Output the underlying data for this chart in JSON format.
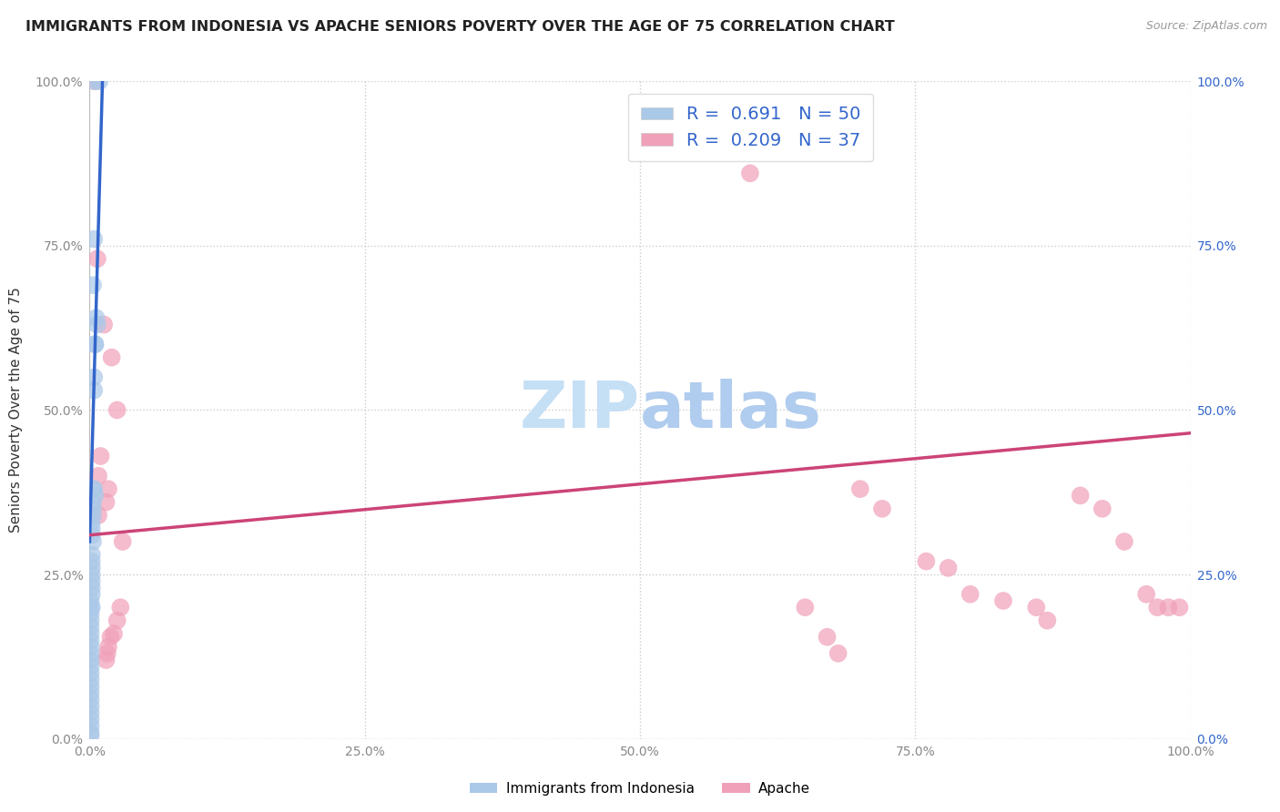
{
  "title": "IMMIGRANTS FROM INDONESIA VS APACHE SENIORS POVERTY OVER THE AGE OF 75 CORRELATION CHART",
  "source": "Source: ZipAtlas.com",
  "ylabel": "Seniors Poverty Over the Age of 75",
  "xlim": [
    0,
    1.0
  ],
  "ylim": [
    0,
    1.0
  ],
  "xticks": [
    0.0,
    0.25,
    0.5,
    0.75,
    1.0
  ],
  "yticks": [
    0.0,
    0.25,
    0.5,
    0.75,
    1.0
  ],
  "xticklabels_left": [
    "0.0%",
    "25.0%",
    "50.0%",
    "75.0%",
    "100.0%"
  ],
  "yticklabels_left": [
    "0.0%",
    "25.0%",
    "50.0%",
    "75.0%",
    "100.0%"
  ],
  "yticklabels_right": [
    "0.0%",
    "25.0%",
    "50.0%",
    "75.0%",
    "100.0%"
  ],
  "blue_R": 0.691,
  "blue_N": 50,
  "pink_R": 0.209,
  "pink_N": 37,
  "blue_color": "#aac8e8",
  "pink_color": "#f0a0b8",
  "blue_line_color": "#3366cc",
  "pink_line_color": "#cc4477",
  "watermark_zip": "ZIP",
  "watermark_atlas": "atlas",
  "watermark_color_zip": "#c8dff0",
  "watermark_color_atlas": "#b0cce8",
  "grid_color": "#cccccc",
  "background_color": "#ffffff",
  "title_fontsize": 11.5,
  "axis_label_fontsize": 11,
  "tick_fontsize": 10,
  "legend_fontsize": 14,
  "right_ytick_color": "#3366cc",
  "left_tick_color": "#888888",
  "bottom_tick_color": "#888888",
  "blue_scatter": [
    [
      0.004,
      1.0
    ],
    [
      0.009,
      1.0
    ],
    [
      0.004,
      0.76
    ],
    [
      0.003,
      0.69
    ],
    [
      0.006,
      0.64
    ],
    [
      0.007,
      0.63
    ],
    [
      0.005,
      0.6
    ],
    [
      0.005,
      0.6
    ],
    [
      0.004,
      0.55
    ],
    [
      0.004,
      0.53
    ],
    [
      0.003,
      0.38
    ],
    [
      0.004,
      0.38
    ],
    [
      0.005,
      0.37
    ],
    [
      0.003,
      0.36
    ],
    [
      0.003,
      0.35
    ],
    [
      0.003,
      0.34
    ],
    [
      0.002,
      0.33
    ],
    [
      0.002,
      0.32
    ],
    [
      0.002,
      0.31
    ],
    [
      0.003,
      0.3
    ],
    [
      0.002,
      0.28
    ],
    [
      0.002,
      0.27
    ],
    [
      0.002,
      0.26
    ],
    [
      0.002,
      0.25
    ],
    [
      0.002,
      0.24
    ],
    [
      0.002,
      0.23
    ],
    [
      0.002,
      0.22
    ],
    [
      0.001,
      0.21
    ],
    [
      0.001,
      0.2
    ],
    [
      0.002,
      0.2
    ],
    [
      0.001,
      0.19
    ],
    [
      0.001,
      0.18
    ],
    [
      0.001,
      0.17
    ],
    [
      0.001,
      0.16
    ],
    [
      0.001,
      0.15
    ],
    [
      0.001,
      0.14
    ],
    [
      0.001,
      0.13
    ],
    [
      0.001,
      0.12
    ],
    [
      0.001,
      0.11
    ],
    [
      0.001,
      0.1
    ],
    [
      0.001,
      0.09
    ],
    [
      0.001,
      0.08
    ],
    [
      0.001,
      0.07
    ],
    [
      0.001,
      0.06
    ],
    [
      0.001,
      0.05
    ],
    [
      0.001,
      0.04
    ],
    [
      0.001,
      0.03
    ],
    [
      0.001,
      0.02
    ],
    [
      0.001,
      0.01
    ],
    [
      0.001,
      0.005
    ]
  ],
  "pink_scatter": [
    [
      0.005,
      1.0
    ],
    [
      0.007,
      0.73
    ],
    [
      0.013,
      0.63
    ],
    [
      0.02,
      0.58
    ],
    [
      0.025,
      0.5
    ],
    [
      0.01,
      0.43
    ],
    [
      0.008,
      0.4
    ],
    [
      0.017,
      0.38
    ],
    [
      0.015,
      0.36
    ],
    [
      0.008,
      0.34
    ],
    [
      0.03,
      0.3
    ],
    [
      0.028,
      0.2
    ],
    [
      0.025,
      0.18
    ],
    [
      0.022,
      0.16
    ],
    [
      0.019,
      0.155
    ],
    [
      0.017,
      0.14
    ],
    [
      0.016,
      0.13
    ],
    [
      0.015,
      0.12
    ],
    [
      0.6,
      0.86
    ],
    [
      0.7,
      0.38
    ],
    [
      0.72,
      0.35
    ],
    [
      0.76,
      0.27
    ],
    [
      0.78,
      0.26
    ],
    [
      0.8,
      0.22
    ],
    [
      0.83,
      0.21
    ],
    [
      0.86,
      0.2
    ],
    [
      0.87,
      0.18
    ],
    [
      0.9,
      0.37
    ],
    [
      0.92,
      0.35
    ],
    [
      0.94,
      0.3
    ],
    [
      0.96,
      0.22
    ],
    [
      0.97,
      0.2
    ],
    [
      0.98,
      0.2
    ],
    [
      0.65,
      0.2
    ],
    [
      0.67,
      0.155
    ],
    [
      0.68,
      0.13
    ],
    [
      0.99,
      0.2
    ]
  ],
  "blue_trend_x": [
    0.0,
    0.012
  ],
  "blue_trend_y": [
    0.3,
    1.02
  ],
  "pink_trend_x": [
    0.0,
    1.0
  ],
  "pink_trend_y": [
    0.31,
    0.465
  ]
}
